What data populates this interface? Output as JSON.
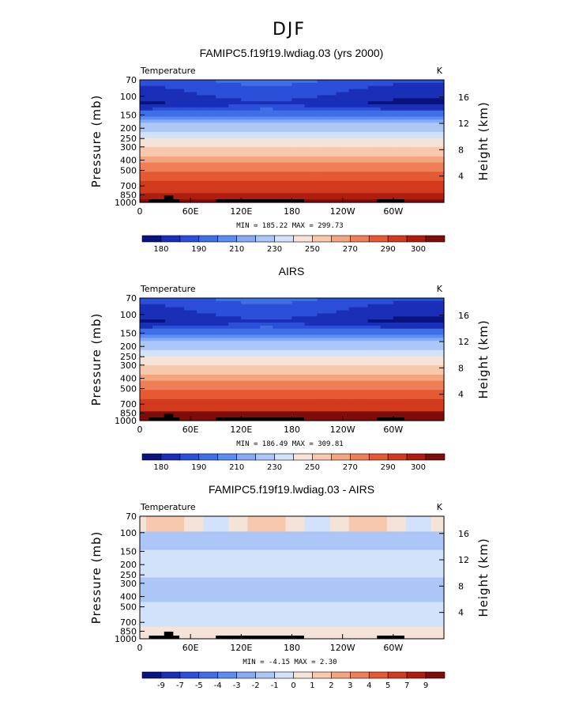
{
  "figure": {
    "title": "DJF"
  },
  "colors": {
    "temp_levels": [
      "#08137e",
      "#1a2fb8",
      "#2b4fd8",
      "#3f6fe6",
      "#5c8df0",
      "#86aaf4",
      "#acc6f7",
      "#d2e2fa",
      "#f4e3d6",
      "#f7c8ac",
      "#f3a580",
      "#ee7f57",
      "#e55a33",
      "#d23a1d",
      "#b01d0e",
      "#7e0c08"
    ],
    "diff_levels": [
      "#08137e",
      "#1a2fb8",
      "#2b4fd8",
      "#3f6fe6",
      "#5c8df0",
      "#86aaf4",
      "#acc6f7",
      "#d2e2fa",
      "#f4e3d6",
      "#f7c8ac",
      "#f3a580",
      "#ee7f57",
      "#e55a33",
      "#d23a1d",
      "#b01d0e",
      "#7e0c08"
    ]
  },
  "chart_data": [
    {
      "type": "heatmap",
      "name": "model",
      "title": "FAMIPC5.f19f19.lwdiag.03 (yrs 2000)",
      "variable": "Temperature",
      "units": "K",
      "ylabel": "Pressure (mb)",
      "y2label": "Height (km)",
      "x_ticks": [
        "0",
        "60E",
        "120E",
        "180",
        "120W",
        "60W"
      ],
      "y_ticks": [
        "70",
        "100",
        "150",
        "200",
        "250",
        "300",
        "400",
        "500",
        "700",
        "850",
        "1000"
      ],
      "y2_ticks": [
        "16",
        "12",
        "8",
        "4"
      ],
      "min_label": "MIN = 185.22",
      "max_label": "MAX = 299.73",
      "colorbar_labels": [
        "180",
        "190",
        "210",
        "230",
        "250",
        "270",
        "290",
        "300"
      ],
      "contour_levels": [
        180,
        185,
        190,
        200,
        210,
        220,
        230,
        240,
        250,
        260,
        270,
        280,
        290,
        295,
        300
      ]
    },
    {
      "type": "heatmap",
      "name": "obs",
      "title": "AIRS",
      "variable": "Temperature",
      "units": "K",
      "ylabel": "Pressure (mb)",
      "y2label": "Height (km)",
      "x_ticks": [
        "0",
        "60E",
        "120E",
        "180",
        "120W",
        "60W"
      ],
      "y_ticks": [
        "70",
        "100",
        "150",
        "200",
        "250",
        "300",
        "400",
        "500",
        "700",
        "850",
        "1000"
      ],
      "y2_ticks": [
        "16",
        "12",
        "8",
        "4"
      ],
      "min_label": "MIN = 186.49",
      "max_label": "MAX = 309.81",
      "colorbar_labels": [
        "180",
        "190",
        "210",
        "230",
        "250",
        "270",
        "290",
        "300"
      ],
      "contour_levels": [
        180,
        185,
        190,
        200,
        210,
        220,
        230,
        240,
        250,
        260,
        270,
        280,
        290,
        295,
        300
      ]
    },
    {
      "type": "heatmap",
      "name": "diff",
      "title": "FAMIPC5.f19f19.lwdiag.03 - AIRS",
      "variable": "Temperature",
      "units": "K",
      "ylabel": "Pressure (mb)",
      "y2label": "Height (km)",
      "x_ticks": [
        "0",
        "60E",
        "120E",
        "180",
        "120W",
        "60W"
      ],
      "y_ticks": [
        "70",
        "100",
        "150",
        "200",
        "250",
        "300",
        "400",
        "500",
        "700",
        "850",
        "1000"
      ],
      "y2_ticks": [
        "16",
        "12",
        "8",
        "4"
      ],
      "min_label": "MIN = -4.15",
      "max_label": "MAX = 2.30",
      "colorbar_labels": [
        "-9",
        "-7",
        "-5",
        "-4",
        "-3",
        "-2",
        "-1",
        "0",
        "1",
        "2",
        "3",
        "4",
        "5",
        "7",
        "9"
      ],
      "contour_levels": [
        -9,
        -7,
        -5,
        -4,
        -3,
        -2,
        -1,
        0,
        1,
        2,
        3,
        4,
        5,
        7,
        9
      ]
    }
  ]
}
